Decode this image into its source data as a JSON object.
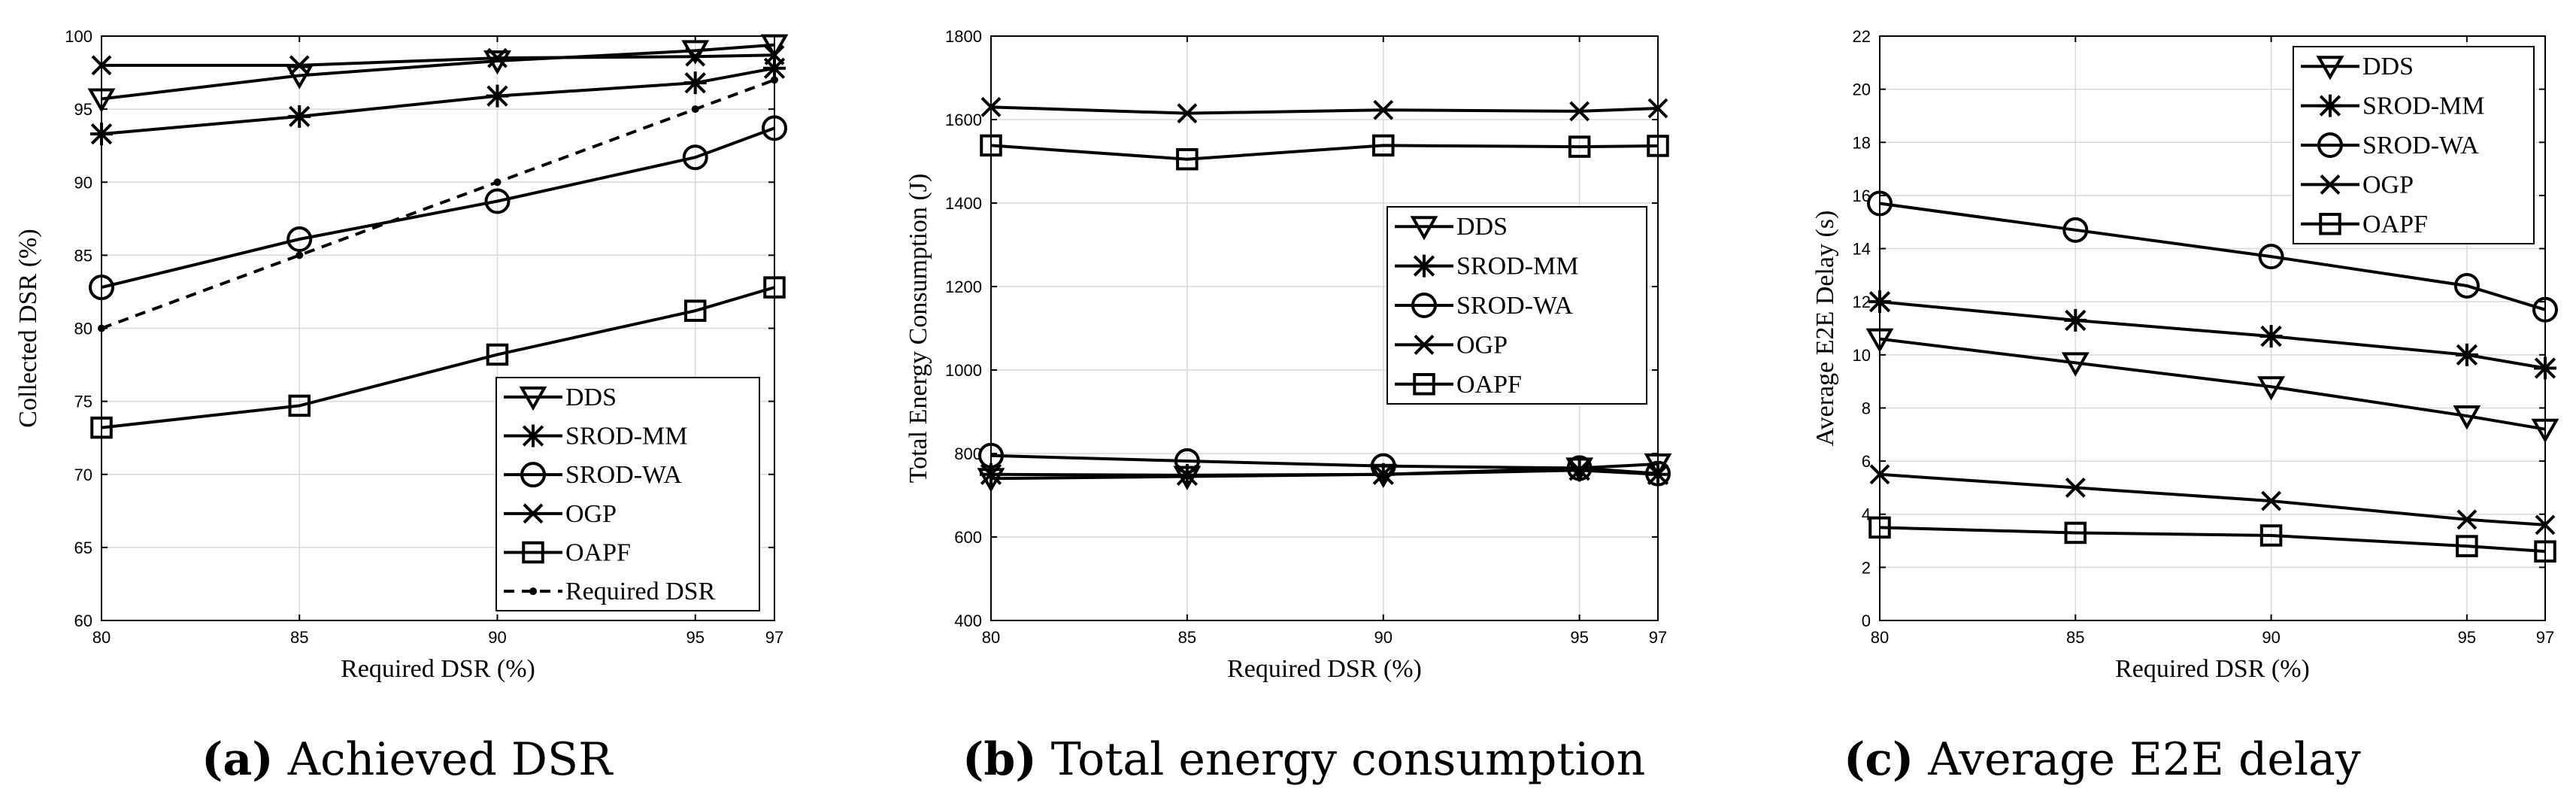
{
  "chart_data": [
    {
      "type": "line",
      "x": [
        80,
        85,
        90,
        95,
        97
      ],
      "xlabel": "Required DSR (%)",
      "ylabel": "Collected DSR (%)",
      "xlim": [
        80,
        97
      ],
      "ylim": [
        60,
        100
      ],
      "xticks": [
        "80",
        "85",
        "90",
        "95",
        "97"
      ],
      "yticks": [
        "60",
        "65",
        "70",
        "75",
        "80",
        "85",
        "90",
        "95",
        "100"
      ],
      "grid": true,
      "legend_position": "bottom-right",
      "caption_letter": "(a)",
      "caption_text": "Achieved DSR",
      "series": [
        {
          "name": "DDS",
          "marker": "triangle",
          "values": [
            95.7,
            97.3,
            98.3,
            99.0,
            99.4
          ]
        },
        {
          "name": "SROD-MM",
          "marker": "star",
          "values": [
            93.3,
            94.5,
            95.9,
            96.8,
            97.8
          ]
        },
        {
          "name": "SROD-WA",
          "marker": "circle",
          "values": [
            82.8,
            86.1,
            88.7,
            91.7,
            93.7
          ]
        },
        {
          "name": "OGP",
          "marker": "x",
          "values": [
            98.0,
            98.0,
            98.5,
            98.6,
            98.7
          ]
        },
        {
          "name": "OAPF",
          "marker": "square",
          "values": [
            73.2,
            74.7,
            78.2,
            81.2,
            82.8
          ]
        },
        {
          "name": "Required DSR",
          "marker": "dot",
          "dashed": true,
          "values": [
            80,
            85,
            90,
            95,
            97
          ]
        }
      ]
    },
    {
      "type": "line",
      "x": [
        80,
        85,
        90,
        95,
        97
      ],
      "xlabel": "Required DSR (%)",
      "ylabel": "Total Energy Consumption (J)",
      "xlim": [
        80,
        97
      ],
      "ylim": [
        400,
        1800
      ],
      "xticks": [
        "80",
        "85",
        "90",
        "95",
        "97"
      ],
      "yticks": [
        "400",
        "600",
        "800",
        "1000",
        "1200",
        "1400",
        "1600",
        "1800"
      ],
      "grid": true,
      "legend_position": "center-right",
      "caption_letter": "(b)",
      "caption_text": "Total energy consumption",
      "series": [
        {
          "name": "DDS",
          "marker": "triangle",
          "values": [
            740,
            745,
            750,
            765,
            775
          ]
        },
        {
          "name": "SROD-MM",
          "marker": "star",
          "values": [
            750,
            748,
            750,
            760,
            750
          ]
        },
        {
          "name": "SROD-WA",
          "marker": "circle",
          "values": [
            795,
            782,
            770,
            765,
            752
          ]
        },
        {
          "name": "OGP",
          "marker": "x",
          "values": [
            1630,
            1615,
            1623,
            1620,
            1627
          ]
        },
        {
          "name": "OAPF",
          "marker": "square",
          "values": [
            1538,
            1505,
            1538,
            1535,
            1537
          ]
        }
      ]
    },
    {
      "type": "line",
      "x": [
        80,
        85,
        90,
        95,
        97
      ],
      "xlabel": "Required DSR (%)",
      "ylabel": "Average E2E Delay (s)",
      "xlim": [
        80,
        97
      ],
      "ylim": [
        0,
        22
      ],
      "xticks": [
        "80",
        "85",
        "90",
        "95",
        "97"
      ],
      "yticks": [
        "0",
        "2",
        "4",
        "6",
        "8",
        "10",
        "12",
        "14",
        "16",
        "18",
        "20",
        "22"
      ],
      "grid": true,
      "legend_position": "top-right",
      "caption_letter": "(c)",
      "caption_text": "Average E2E delay",
      "series": [
        {
          "name": "DDS",
          "marker": "triangle",
          "values": [
            10.6,
            9.7,
            8.8,
            7.7,
            7.2
          ]
        },
        {
          "name": "SROD-MM",
          "marker": "star",
          "values": [
            12.0,
            11.3,
            10.7,
            10.0,
            9.5
          ]
        },
        {
          "name": "SROD-WA",
          "marker": "circle",
          "values": [
            15.7,
            14.7,
            13.7,
            12.6,
            11.7
          ]
        },
        {
          "name": "OGP",
          "marker": "x",
          "values": [
            5.5,
            5.0,
            4.5,
            3.8,
            3.6
          ]
        },
        {
          "name": "OAPF",
          "marker": "square",
          "values": [
            3.5,
            3.3,
            3.2,
            2.8,
            2.6
          ]
        }
      ]
    }
  ]
}
